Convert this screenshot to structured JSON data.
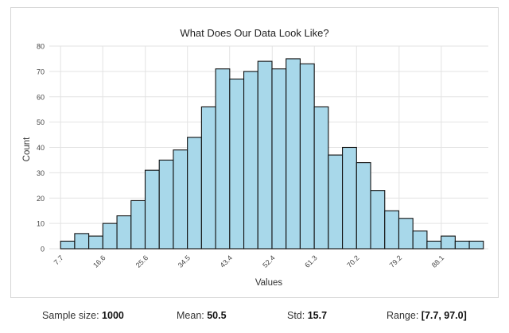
{
  "chart_data": {
    "type": "bar",
    "title": "What Does Our Data Look Like?",
    "xlabel": "Values",
    "ylabel": "Count",
    "ylim": [
      0,
      80
    ],
    "yticks": [
      0,
      10,
      20,
      30,
      40,
      50,
      60,
      70,
      80
    ],
    "bin_start": 7.7,
    "bin_end": 97.0,
    "xticks": [
      7.7,
      16.6,
      25.6,
      34.5,
      43.4,
      52.4,
      61.3,
      70.2,
      79.2,
      88.1
    ],
    "xtick_labels": [
      "7.7",
      "16.6",
      "25.6",
      "34.5",
      "43.4",
      "52.4",
      "61.3",
      "70.2",
      "79.2",
      "88.1"
    ],
    "counts": [
      3,
      6,
      5,
      10,
      13,
      19,
      31,
      35,
      39,
      44,
      56,
      71,
      67,
      70,
      74,
      71,
      75,
      73,
      56,
      37,
      40,
      34,
      23,
      15,
      12,
      7,
      3,
      5,
      3,
      3
    ],
    "bar_color": "#a8d8ea",
    "bar_edge_color": "#111111",
    "grid": true,
    "legend": "none"
  },
  "stats": [
    {
      "label": "Sample size:",
      "value": "1000"
    },
    {
      "label": "Mean:",
      "value": "50.5"
    },
    {
      "label": "Std:",
      "value": "15.7"
    },
    {
      "label": "Range:",
      "value": "[7.7, 97.0]"
    }
  ]
}
